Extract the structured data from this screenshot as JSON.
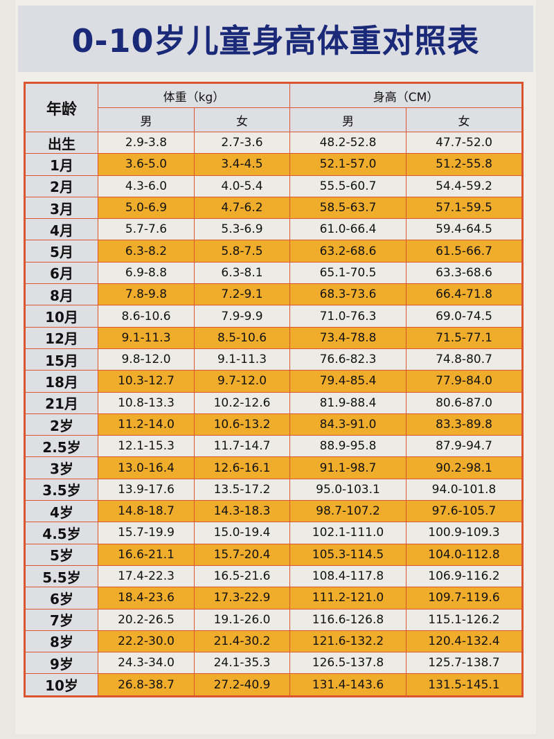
{
  "title": "0-10岁儿童身高体重对照表",
  "headers": {
    "age": "年龄",
    "weight": "体重（kg）",
    "height": "身高（CM）",
    "male": "男",
    "female": "女"
  },
  "colors": {
    "title": "#1b2a78",
    "border": "#d9542f",
    "highlight_row": "#f0ad2b",
    "plain_row": "#ecebe6"
  },
  "rows": [
    {
      "age": "出生",
      "w_m": "2.9-3.8",
      "w_f": "2.7-3.6",
      "h_m": "48.2-52.8",
      "h_f": "47.7-52.0"
    },
    {
      "age": "1月",
      "w_m": "3.6-5.0",
      "w_f": "3.4-4.5",
      "h_m": "52.1-57.0",
      "h_f": "51.2-55.8"
    },
    {
      "age": "2月",
      "w_m": "4.3-6.0",
      "w_f": "4.0-5.4",
      "h_m": "55.5-60.7",
      "h_f": "54.4-59.2"
    },
    {
      "age": "3月",
      "w_m": "5.0-6.9",
      "w_f": "4.7-6.2",
      "h_m": "58.5-63.7",
      "h_f": "57.1-59.5"
    },
    {
      "age": "4月",
      "w_m": "5.7-7.6",
      "w_f": "5.3-6.9",
      "h_m": "61.0-66.4",
      "h_f": "59.4-64.5"
    },
    {
      "age": "5月",
      "w_m": "6.3-8.2",
      "w_f": "5.8-7.5",
      "h_m": "63.2-68.6",
      "h_f": "61.5-66.7"
    },
    {
      "age": "6月",
      "w_m": "6.9-8.8",
      "w_f": "6.3-8.1",
      "h_m": "65.1-70.5",
      "h_f": "63.3-68.6"
    },
    {
      "age": "8月",
      "w_m": "7.8-9.8",
      "w_f": "7.2-9.1",
      "h_m": "68.3-73.6",
      "h_f": "66.4-71.8"
    },
    {
      "age": "10月",
      "w_m": "8.6-10.6",
      "w_f": "7.9-9.9",
      "h_m": "71.0-76.3",
      "h_f": "69.0-74.5"
    },
    {
      "age": "12月",
      "w_m": "9.1-11.3",
      "w_f": "8.5-10.6",
      "h_m": "73.4-78.8",
      "h_f": "71.5-77.1"
    },
    {
      "age": "15月",
      "w_m": "9.8-12.0",
      "w_f": "9.1-11.3",
      "h_m": "76.6-82.3",
      "h_f": "74.8-80.7"
    },
    {
      "age": "18月",
      "w_m": "10.3-12.7",
      "w_f": "9.7-12.0",
      "h_m": "79.4-85.4",
      "h_f": "77.9-84.0"
    },
    {
      "age": "21月",
      "w_m": "10.8-13.3",
      "w_f": "10.2-12.6",
      "h_m": "81.9-88.4",
      "h_f": "80.6-87.0"
    },
    {
      "age": "2岁",
      "w_m": "11.2-14.0",
      "w_f": "10.6-13.2",
      "h_m": "84.3-91.0",
      "h_f": "83.3-89.8"
    },
    {
      "age": "2.5岁",
      "w_m": "12.1-15.3",
      "w_f": "11.7-14.7",
      "h_m": "88.9-95.8",
      "h_f": "87.9-94.7"
    },
    {
      "age": "3岁",
      "w_m": "13.0-16.4",
      "w_f": "12.6-16.1",
      "h_m": "91.1-98.7",
      "h_f": "90.2-98.1"
    },
    {
      "age": "3.5岁",
      "w_m": "13.9-17.6",
      "w_f": "13.5-17.2",
      "h_m": "95.0-103.1",
      "h_f": "94.0-101.8"
    },
    {
      "age": "4岁",
      "w_m": "14.8-18.7",
      "w_f": "14.3-18.3",
      "h_m": "98.7-107.2",
      "h_f": "97.6-105.7"
    },
    {
      "age": "4.5岁",
      "w_m": "15.7-19.9",
      "w_f": "15.0-19.4",
      "h_m": "102.1-111.0",
      "h_f": "100.9-109.3"
    },
    {
      "age": "5岁",
      "w_m": "16.6-21.1",
      "w_f": "15.7-20.4",
      "h_m": "105.3-114.5",
      "h_f": "104.0-112.8"
    },
    {
      "age": "5.5岁",
      "w_m": "17.4-22.3",
      "w_f": "16.5-21.6",
      "h_m": "108.4-117.8",
      "h_f": "106.9-116.2"
    },
    {
      "age": "6岁",
      "w_m": "18.4-23.6",
      "w_f": "17.3-22.9",
      "h_m": "111.2-121.0",
      "h_f": "109.7-119.6"
    },
    {
      "age": "7岁",
      "w_m": "20.2-26.5",
      "w_f": "19.1-26.0",
      "h_m": "116.6-126.8",
      "h_f": "115.1-126.2"
    },
    {
      "age": "8岁",
      "w_m": "22.2-30.0",
      "w_f": "21.4-30.2",
      "h_m": "121.6-132.2",
      "h_f": "120.4-132.4"
    },
    {
      "age": "9岁",
      "w_m": "24.3-34.0",
      "w_f": "24.1-35.3",
      "h_m": "126.5-137.8",
      "h_f": "125.7-138.7"
    },
    {
      "age": "10岁",
      "w_m": "26.8-38.7",
      "w_f": "27.2-40.9",
      "h_m": "131.4-143.6",
      "h_f": "131.5-145.1"
    }
  ]
}
